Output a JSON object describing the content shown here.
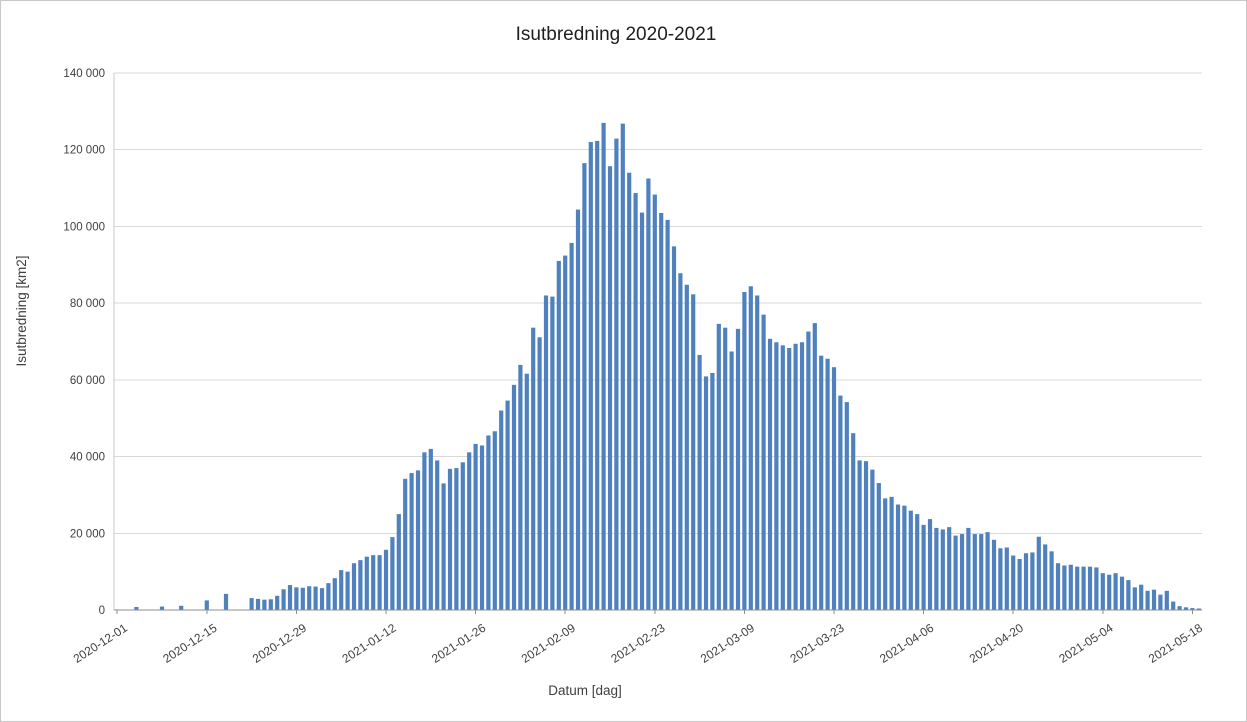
{
  "chart_data": {
    "type": "bar",
    "title": "Isutbredning 2020-2021",
    "xlabel": "Datum [dag]",
    "ylabel": "Isutbredning [km2]",
    "ylim": [
      0,
      140000
    ],
    "grid": "horizontal",
    "legend": "none",
    "bar_color": "#4f81bd",
    "gridline_color": "#d9d9d9",
    "axis_line_color": "#8e8e8e",
    "y_axis_line_color": "#c9c9c9",
    "tick_text_color": "#3f3f3f",
    "ytick_values": [
      0,
      20000,
      40000,
      60000,
      80000,
      100000,
      120000,
      140000
    ],
    "ytick_labels": [
      "0",
      "20 000",
      "40 000",
      "60 000",
      "80 000",
      "100 000",
      "120 000",
      "140 000"
    ],
    "x_tick_every": 14,
    "x_tick_labels": [
      "2020-12-01",
      "2020-12-15",
      "2020-12-29",
      "2021-01-12",
      "2021-01-26",
      "2021-02-09",
      "2021-02-23",
      "2021-03-09",
      "2021-03-23",
      "2021-04-06",
      "2021-04-20",
      "2021-05-04",
      "2021-05-18"
    ],
    "dates": [
      "2020-12-01",
      "2020-12-02",
      "2020-12-03",
      "2020-12-04",
      "2020-12-05",
      "2020-12-06",
      "2020-12-07",
      "2020-12-08",
      "2020-12-09",
      "2020-12-10",
      "2020-12-11",
      "2020-12-12",
      "2020-12-13",
      "2020-12-14",
      "2020-12-15",
      "2020-12-16",
      "2020-12-17",
      "2020-12-18",
      "2020-12-19",
      "2020-12-20",
      "2020-12-21",
      "2020-12-22",
      "2020-12-23",
      "2020-12-24",
      "2020-12-25",
      "2020-12-26",
      "2020-12-27",
      "2020-12-28",
      "2020-12-29",
      "2020-12-30",
      "2020-12-31",
      "2021-01-01",
      "2021-01-02",
      "2021-01-03",
      "2021-01-04",
      "2021-01-05",
      "2021-01-06",
      "2021-01-07",
      "2021-01-08",
      "2021-01-09",
      "2021-01-10",
      "2021-01-11",
      "2021-01-12",
      "2021-01-13",
      "2021-01-14",
      "2021-01-15",
      "2021-01-16",
      "2021-01-17",
      "2021-01-18",
      "2021-01-19",
      "2021-01-20",
      "2021-01-21",
      "2021-01-22",
      "2021-01-23",
      "2021-01-24",
      "2021-01-25",
      "2021-01-26",
      "2021-01-27",
      "2021-01-28",
      "2021-01-29",
      "2021-01-30",
      "2021-01-31",
      "2021-02-01",
      "2021-02-02",
      "2021-02-03",
      "2021-02-04",
      "2021-02-05",
      "2021-02-06",
      "2021-02-07",
      "2021-02-08",
      "2021-02-09",
      "2021-02-10",
      "2021-02-11",
      "2021-02-12",
      "2021-02-13",
      "2021-02-14",
      "2021-02-15",
      "2021-02-16",
      "2021-02-17",
      "2021-02-18",
      "2021-02-19",
      "2021-02-20",
      "2021-02-21",
      "2021-02-22",
      "2021-02-23",
      "2021-02-24",
      "2021-02-25",
      "2021-02-26",
      "2021-02-27",
      "2021-02-28",
      "2021-03-01",
      "2021-03-02",
      "2021-03-03",
      "2021-03-04",
      "2021-03-05",
      "2021-03-06",
      "2021-03-07",
      "2021-03-08",
      "2021-03-09",
      "2021-03-10",
      "2021-03-11",
      "2021-03-12",
      "2021-03-13",
      "2021-03-14",
      "2021-03-15",
      "2021-03-16",
      "2021-03-17",
      "2021-03-18",
      "2021-03-19",
      "2021-03-20",
      "2021-03-21",
      "2021-03-22",
      "2021-03-23",
      "2021-03-24",
      "2021-03-25",
      "2021-03-26",
      "2021-03-27",
      "2021-03-28",
      "2021-03-29",
      "2021-03-30",
      "2021-03-31",
      "2021-04-01",
      "2021-04-02",
      "2021-04-03",
      "2021-04-04",
      "2021-04-05",
      "2021-04-06",
      "2021-04-07",
      "2021-04-08",
      "2021-04-09",
      "2021-04-10",
      "2021-04-11",
      "2021-04-12",
      "2021-04-13",
      "2021-04-14",
      "2021-04-15",
      "2021-04-16",
      "2021-04-17",
      "2021-04-18",
      "2021-04-19",
      "2021-04-20",
      "2021-04-21",
      "2021-04-22",
      "2021-04-23",
      "2021-04-24",
      "2021-04-25",
      "2021-04-26",
      "2021-04-27",
      "2021-04-28",
      "2021-04-29",
      "2021-04-30",
      "2021-05-01",
      "2021-05-02",
      "2021-05-03",
      "2021-05-04",
      "2021-05-05",
      "2021-05-06",
      "2021-05-07",
      "2021-05-08",
      "2021-05-09",
      "2021-05-10",
      "2021-05-11",
      "2021-05-12",
      "2021-05-13",
      "2021-05-14",
      "2021-05-15",
      "2021-05-16",
      "2021-05-17",
      "2021-05-18",
      "2021-05-19"
    ],
    "values": [
      0,
      0,
      0,
      800,
      0,
      0,
      0,
      900,
      0,
      0,
      1100,
      0,
      0,
      0,
      2500,
      0,
      0,
      4200,
      0,
      0,
      0,
      3100,
      2900,
      2700,
      2800,
      3700,
      5400,
      6500,
      5900,
      5800,
      6200,
      6100,
      5700,
      7000,
      8300,
      10400,
      10000,
      12200,
      13000,
      13900,
      14300,
      14300,
      15700,
      19000,
      25000,
      34200,
      35700,
      36400,
      41100,
      42000,
      39000,
      33000,
      36800,
      37000,
      38500,
      41100,
      43300,
      42900,
      45500,
      46600,
      52000,
      54600,
      58700,
      63900,
      61600,
      73600,
      71100,
      82000,
      81700,
      91000,
      92400,
      95700,
      104400,
      116500,
      122000,
      122300,
      127000,
      115700,
      122900,
      126800,
      114000,
      108700,
      103600,
      112500,
      108300,
      103500,
      101700,
      94800,
      87800,
      84800,
      82300,
      66500,
      60900,
      61800,
      74600,
      73600,
      67400,
      73300,
      82900,
      84400,
      82000,
      77000,
      70700,
      69800,
      69000,
      68300,
      69400,
      69800,
      72600,
      74800,
      66300,
      65500,
      63300,
      55900,
      54200,
      46100,
      39000,
      38800,
      36600,
      33100,
      29100,
      29500,
      27500,
      27200,
      25900,
      25000,
      22200,
      23700,
      21400,
      21000,
      21600,
      19400,
      19800,
      21400,
      19800,
      19800,
      20300,
      18300,
      16100,
      16300,
      14200,
      13300,
      14800,
      15000,
      19100,
      17100,
      15300,
      12200,
      11600,
      11800,
      11300,
      11300,
      11300,
      11100,
      9600,
      9200,
      9600,
      8700,
      7800,
      5900,
      6600,
      5000,
      5300,
      4000,
      5000,
      2200,
      1000,
      700,
      500,
      400
    ]
  }
}
